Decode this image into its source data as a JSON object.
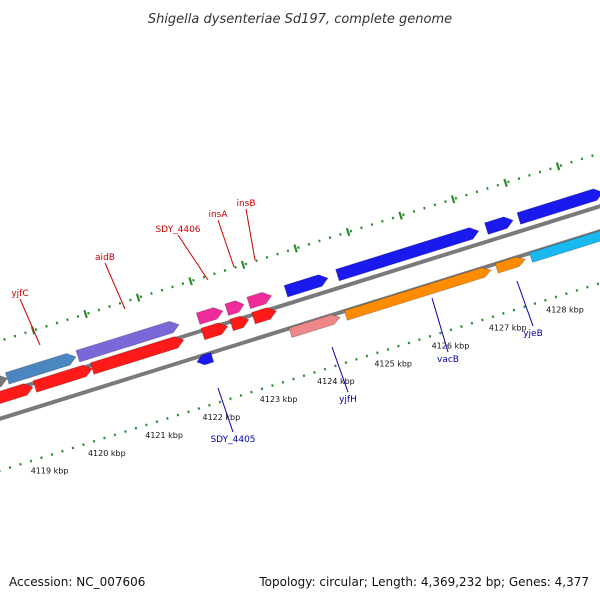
{
  "title": "Shigella dysenteriae Sd197, complete genome",
  "footer": {
    "accession": "Accession: NC_007606",
    "summary": "Topology: circular; Length: 4,369,232 bp; Genes: 4,377"
  },
  "ticks": [
    {
      "label": "4119 kbp"
    },
    {
      "label": "4120 kbp"
    },
    {
      "label": "4121 kbp"
    },
    {
      "label": "4122 kbp"
    },
    {
      "label": "4123 kbp"
    },
    {
      "label": "4124 kbp"
    },
    {
      "label": "4125 kbp"
    },
    {
      "label": "4126 kbp"
    },
    {
      "label": "4127 kbp"
    },
    {
      "label": "4128 kbp"
    }
  ],
  "gene_labels": [
    {
      "name": "yjfC",
      "color": "#cc0000"
    },
    {
      "name": "aidB",
      "color": "#cc0000"
    },
    {
      "name": "SDY_4406",
      "color": "#cc0000"
    },
    {
      "name": "insA",
      "color": "#cc0000"
    },
    {
      "name": "insB",
      "color": "#cc0000"
    },
    {
      "name": "SDY_4405",
      "color": "#0000aa"
    },
    {
      "name": "yjfH",
      "color": "#0000aa"
    },
    {
      "name": "vacB",
      "color": "#0000aa"
    },
    {
      "name": "yjeB",
      "color": "#0000aa"
    }
  ],
  "colors": {
    "backbone": "#8a8a8a",
    "tick_dots": "#2e8b2e",
    "forward_label": "#cc0000",
    "reverse_label": "#0000aa",
    "feature_red": "#ff1a1a",
    "feature_blue": "#1a1aee",
    "feature_pink": "#ee2d9a",
    "feature_orange": "#ff8c00",
    "feature_purple": "#7b68d8",
    "feature_steelblue": "#4a86c0",
    "feature_cyan": "#1ab8f0",
    "feature_salmon": "#ee8888",
    "feature_gray": "#777777"
  }
}
